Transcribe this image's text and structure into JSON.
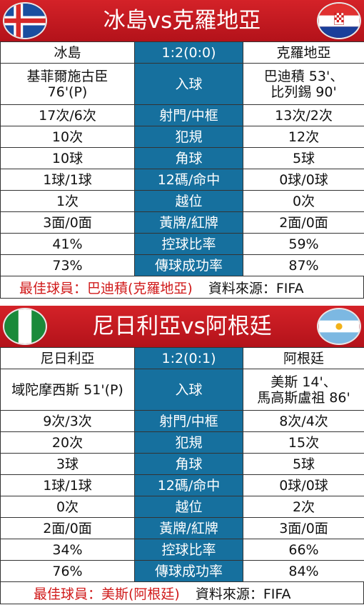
{
  "matches": [
    {
      "title": "冰島vs克羅地亞",
      "home_team": "冰島",
      "away_team": "克羅地亞",
      "score": "1:2(0:0)",
      "flags": {
        "home": "iceland-flag-icon",
        "away": "croatia-flag-icon"
      },
      "goals": {
        "label": "入球",
        "home_line1": "基菲爾施古臣",
        "home_line2": "76'(P)",
        "away_line1": "巴迪積 53'、",
        "away_line2": "比列錫 90'"
      },
      "stats": [
        {
          "label": "射門/中框",
          "home": "17次/6次",
          "away": "13次/2次"
        },
        {
          "label": "犯規",
          "home": "10次",
          "away": "12次"
        },
        {
          "label": "角球",
          "home": "10球",
          "away": "5球"
        },
        {
          "label": "12碼/命中",
          "home": "1球/1球",
          "away": "0球/0球"
        },
        {
          "label": "越位",
          "home": "1次",
          "away": "0次"
        },
        {
          "label": "黃牌/紅牌",
          "home": "3面/0面",
          "away": "2面/0面"
        },
        {
          "label": "控球比率",
          "home": "41%",
          "away": "59%"
        },
        {
          "label": "傳球成功率",
          "home": "73%",
          "away": "87%"
        }
      ],
      "best_player": "最佳球員：巴迪積(克羅地亞)",
      "source": "資料來源：FIFA"
    },
    {
      "title": "尼日利亞vs阿根廷",
      "home_team": "尼日利亞",
      "away_team": "阿根廷",
      "score": "1:2(0:1)",
      "flags": {
        "home": "nigeria-flag-icon",
        "away": "argentina-flag-icon"
      },
      "goals": {
        "label": "入球",
        "home_line1": "域陀摩西斯 51'(P)",
        "home_line2": "",
        "away_line1": "美斯 14'、",
        "away_line2": "馬高斯盧祖 86'"
      },
      "stats": [
        {
          "label": "射門/中框",
          "home": "9次/3次",
          "away": "8次/4次"
        },
        {
          "label": "犯規",
          "home": "20次",
          "away": "15次"
        },
        {
          "label": "角球",
          "home": "3球",
          "away": "5球"
        },
        {
          "label": "12碼/命中",
          "home": "1球/1球",
          "away": "0球/0球"
        },
        {
          "label": "越位",
          "home": "0次",
          "away": "2次"
        },
        {
          "label": "黃牌/紅牌",
          "home": "2面/0面",
          "away": "3面/0面"
        },
        {
          "label": "控球比率",
          "home": "34%",
          "away": "66%"
        },
        {
          "label": "傳球成功率",
          "home": "76%",
          "away": "84%"
        }
      ],
      "best_player": "最佳球員：美斯(阿根廷)",
      "source": "資料來源：FIFA"
    }
  ],
  "colors": {
    "title_red": "#c8191e",
    "label_blue": "#16709e",
    "best_player_red": "#d01a1a"
  }
}
